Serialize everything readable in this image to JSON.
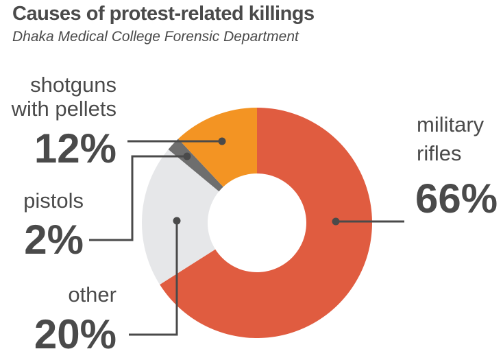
{
  "title": "Causes of protest-related killings",
  "subtitle": "Dhaka Medical College Forensic Department",
  "chart_data": {
    "type": "pie",
    "donut": true,
    "title": "Causes of protest-related killings",
    "subtitle": "Dhaka Medical College Forensic Department",
    "start_angle_deg": 0,
    "direction": "clockwise",
    "slices": [
      {
        "name_lines": [
          "military",
          "rifles"
        ],
        "value": 66,
        "label": "66%",
        "color": "#e05c40"
      },
      {
        "name_lines": [
          "other"
        ],
        "value": 20,
        "label": "20%",
        "color": "#e6e7e9"
      },
      {
        "name_lines": [
          "pistols"
        ],
        "value": 2,
        "label": "2%",
        "color": "#6e6e6e"
      },
      {
        "name_lines": [
          "shotguns",
          "with pellets"
        ],
        "value": 12,
        "label": "12%",
        "color": "#f39423"
      }
    ]
  },
  "colors": {
    "text": "#4a4a4a",
    "leader": "#4a4a4a",
    "background": "#ffffff"
  }
}
